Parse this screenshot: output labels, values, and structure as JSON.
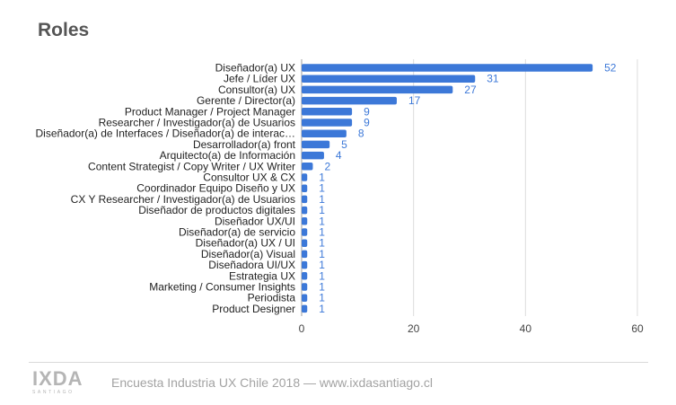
{
  "chart_data": {
    "type": "bar",
    "orientation": "horizontal",
    "title": "Roles",
    "categories": [
      "Diseñador(a) UX",
      "Jefe / Líder UX",
      "Consultor(a) UX",
      "Gerente / Director(a)",
      "Product Manager / Project Manager",
      "Researcher / Investigador(a) de Usuarios",
      "Diseñador(a) de Interfaces / Diseñador(a) de interac…",
      "Desarrollador(a) front",
      "Arquitecto(a) de Información",
      "Content Strategist / Copy Writer / UX Writer",
      "Consultor UX & CX",
      "Coordinador Equipo Diseño y UX",
      "CX Y Researcher / Investigador(a) de Usuarios",
      "Diseñador de productos digitales",
      "Diseñador UX/UI",
      "Diseñador(a) de servicio",
      "Diseñador(a) UX / UI",
      "Diseñador(a) Visual",
      "Diseñadora UI/UX",
      "Estrategia UX",
      "Marketing / Consumer Insights",
      "Periodista",
      "Product Designer"
    ],
    "values": [
      52,
      31,
      27,
      17,
      9,
      9,
      8,
      5,
      4,
      2,
      1,
      1,
      1,
      1,
      1,
      1,
      1,
      1,
      1,
      1,
      1,
      1,
      1
    ],
    "xlim": [
      0,
      60
    ],
    "xticks": [
      0,
      20,
      40,
      60
    ],
    "grid": true,
    "legend": "none",
    "bar_color": "#3c78d8",
    "label_color": "#3c78d8"
  },
  "footer": {
    "logo": "IXDA",
    "logo_sub": "SANTIAGO",
    "text": "Encuesta Industria UX Chile 2018 — www.ixdasantiago.cl"
  }
}
